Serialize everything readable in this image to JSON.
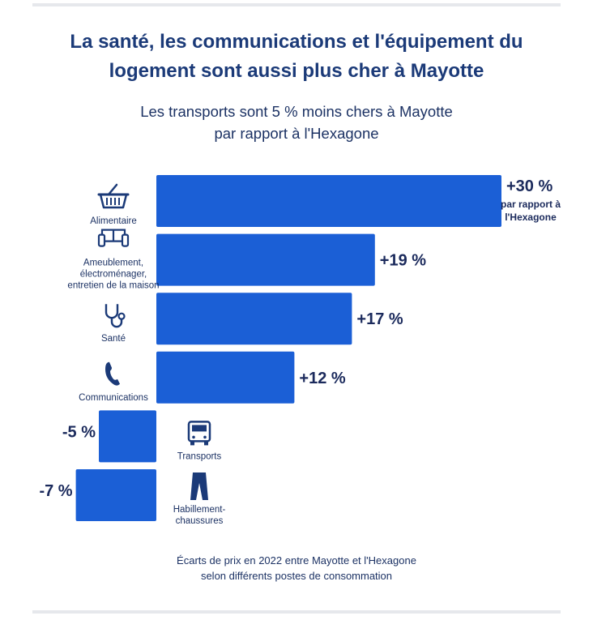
{
  "title": [
    "La santé, les communications et l'équipement du",
    "logement sont aussi plus cher à Mayotte"
  ],
  "subtitle": [
    "Les transports sont 5 % moins chers à Mayotte",
    "par rapport à l'Hexagone"
  ],
  "footnote": [
    "Écarts de prix en 2022 entre Mayotte et l'Hexagone",
    "selon différents postes de consommation"
  ],
  "colors": {
    "bar": "#1b5fd6",
    "label": "#1b2a5c",
    "icon": "#1b3a78",
    "text": "#1c3264"
  },
  "chart_data": {
    "type": "bar",
    "orientation": "horizontal",
    "unit": "%",
    "categories": [
      {
        "name": [
          "Alimentaire"
        ],
        "icon": "shopping-basket-icon"
      },
      {
        "name": [
          "Ameublement,",
          "électroménager,",
          "entretien de la maison"
        ],
        "icon": "sofa-icon"
      },
      {
        "name": [
          "Santé"
        ],
        "icon": "stethoscope-icon"
      },
      {
        "name": [
          "Communications"
        ],
        "icon": "phone-icon"
      },
      {
        "name": [
          "Transports"
        ],
        "icon": "bus-icon"
      },
      {
        "name": [
          "Habillement-",
          "chaussures"
        ],
        "icon": "trousers-icon"
      }
    ],
    "values": [
      30,
      19,
      17,
      12,
      -5,
      -7
    ],
    "value_labels": [
      "+30 %",
      "+19 %",
      "+17 %",
      "+12 %",
      "-5 %",
      "-7 %"
    ],
    "annotation": [
      "par rapport à",
      "l'Hexagone"
    ],
    "xlim": [
      -7,
      30
    ],
    "grid": false,
    "legend": "none"
  }
}
